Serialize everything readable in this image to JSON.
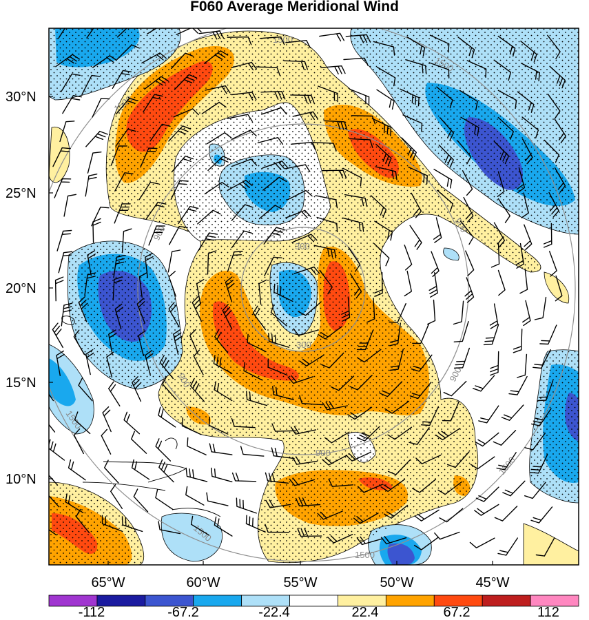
{
  "title": "F060 Average Meridional Wind",
  "lat_labels": [
    "30°N",
    "25°N",
    "20°N",
    "15°N",
    "10°N"
  ],
  "lon_labels": [
    "65°W",
    "60°W",
    "55°W",
    "50°W",
    "45°W"
  ],
  "range_rings": [
    "300",
    "900",
    "1500"
  ],
  "colorbar": {
    "colors": [
      "#a035d0",
      "#1b1ba0",
      "#3c55d0",
      "#19a8ee",
      "#aee0f8",
      "#ffffff",
      "#fff0a0",
      "#ffa300",
      "#ff4a10",
      "#be1e1e",
      "#ff87c0"
    ],
    "labels": [
      "-112",
      "-67.2",
      "-22.4",
      "22.4",
      "67.2",
      "112"
    ]
  }
}
